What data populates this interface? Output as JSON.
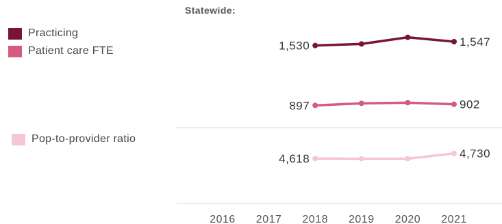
{
  "section_title": "Statewide:",
  "legend": [
    {
      "label": "Practicing",
      "color": "#7a1437"
    },
    {
      "label": "Patient care FTE",
      "color": "#d65a7e"
    },
    {
      "label": "Pop-to-provider ratio",
      "color": "#f5c6d3"
    }
  ],
  "chart_data": {
    "type": "line",
    "x": [
      "2016",
      "2017",
      "2018",
      "2019",
      "2020",
      "2021"
    ],
    "series": [
      {
        "name": "Practicing",
        "color": "#7a1437",
        "values": [
          null,
          null,
          1530,
          1537,
          1566,
          1547
        ],
        "labels": {
          "first": "1,530",
          "last": "1,547"
        }
      },
      {
        "name": "Patient care FTE",
        "color": "#d65a7e",
        "values": [
          null,
          null,
          897,
          906,
          909,
          902
        ],
        "labels": {
          "first": "897",
          "last": "902"
        }
      },
      {
        "name": "Pop-to-provider ratio",
        "color": "#f5c6d3",
        "values": [
          null,
          null,
          4618,
          4614,
          4614,
          4730
        ],
        "labels": {
          "first": "4,618",
          "last": "4,730"
        }
      }
    ],
    "grid": false,
    "legend_position": "left"
  }
}
